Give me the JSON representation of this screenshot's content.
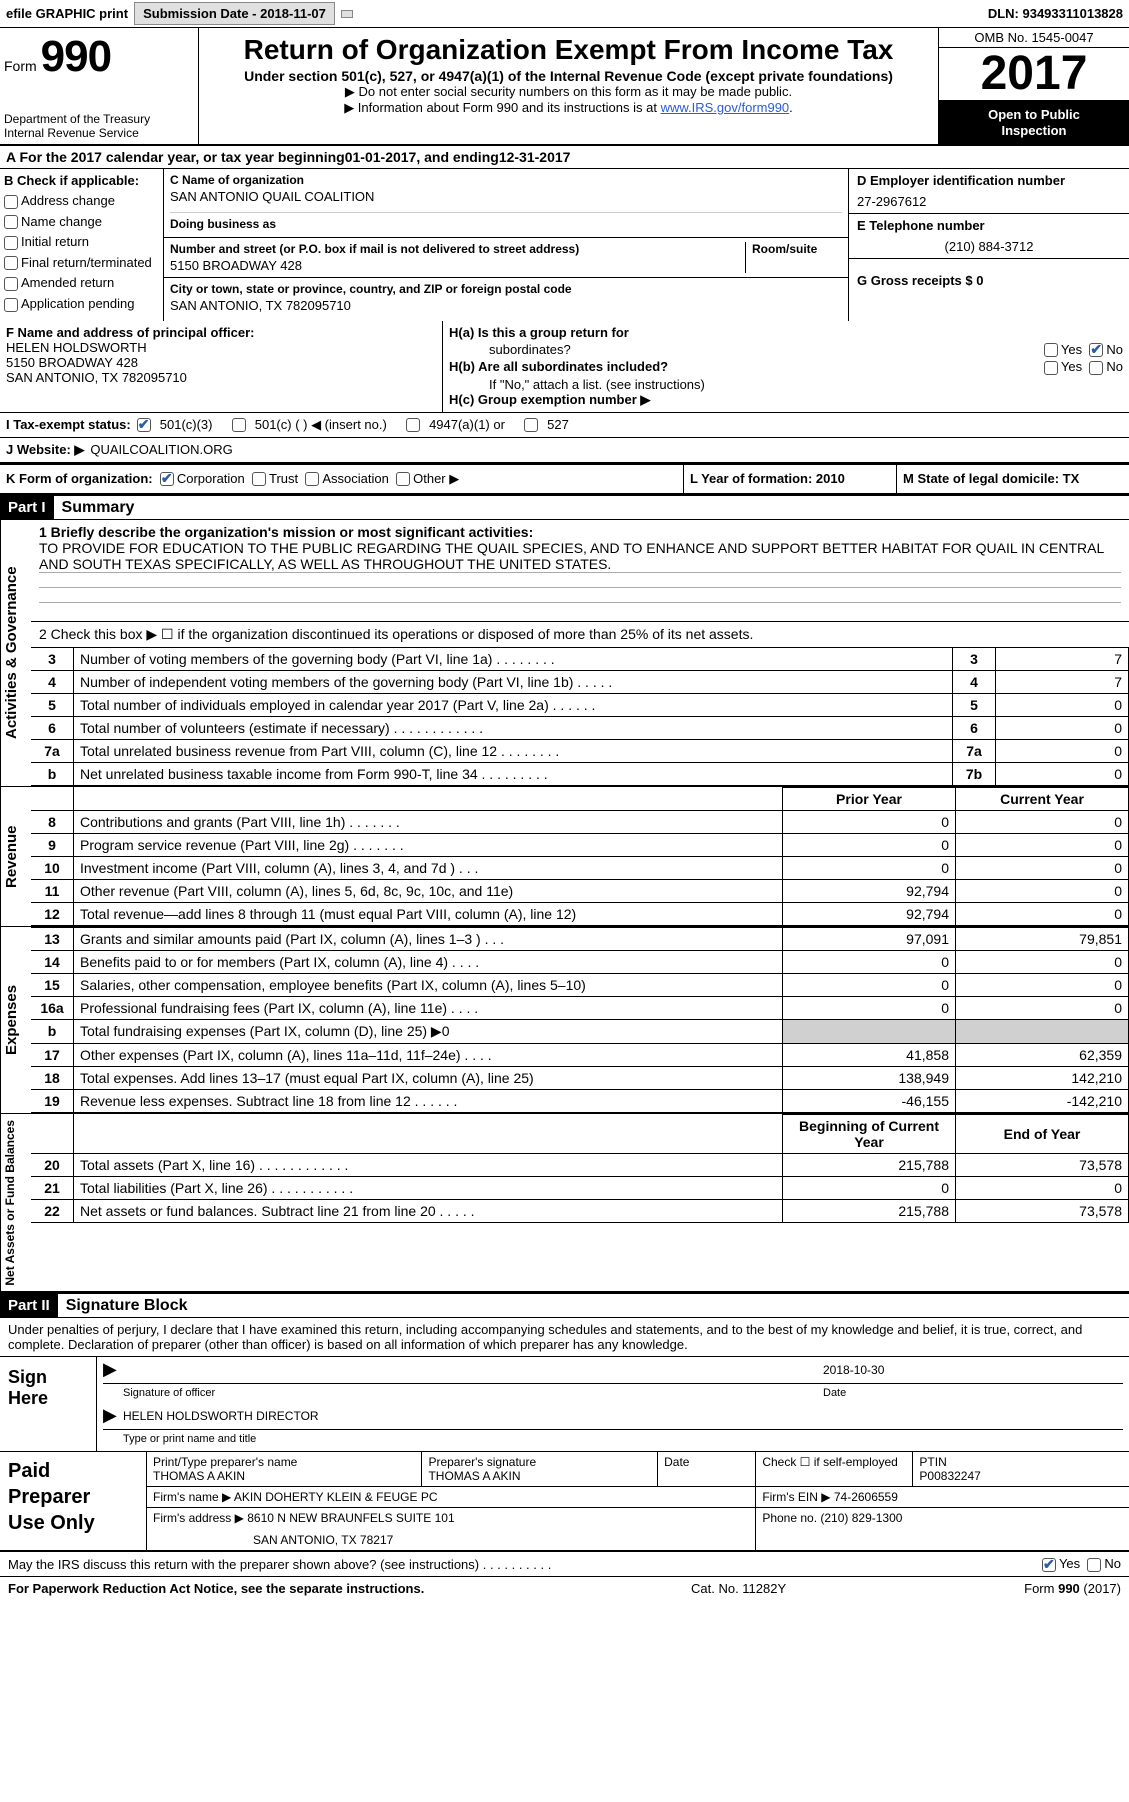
{
  "topbar": {
    "efile": "efile GRAPHIC print",
    "submission_label": "Submission Date - 2018-11-07",
    "dln": "DLN: 93493311013828"
  },
  "header": {
    "form_label": "Form",
    "form_number": "990",
    "dept": "Department of the Treasury",
    "irs": "Internal Revenue Service",
    "title": "Return of Organization Exempt From Income Tax",
    "subtitle": "Under section 501(c), 527, or 4947(a)(1) of the Internal Revenue Code (except private foundations)",
    "note1": "Do not enter social security numbers on this form as it may be made public.",
    "note2": "Information about Form 990 and its instructions is at ",
    "note2_link": "www.IRS.gov/form990",
    "omb": "OMB No. 1545-0047",
    "year": "2017",
    "open": "Open to Public Inspection"
  },
  "rowA": {
    "text_pre": "A   For the 2017 calendar year, or tax year beginning ",
    "begin": "01-01-2017",
    "mid": "   , and ending ",
    "end": "12-31-2017"
  },
  "colB": {
    "label": "B Check if applicable:",
    "items": [
      "Address change",
      "Name change",
      "Initial return",
      "Final return/terminated",
      "Amended return",
      "Application pending"
    ]
  },
  "colC": {
    "name_label": "C Name of organization",
    "name": "SAN ANTONIO QUAIL COALITION",
    "dba_label": "Doing business as",
    "dba": "",
    "addr_label": "Number and street (or P.O. box if mail is not delivered to street address)",
    "room_label": "Room/suite",
    "addr": "5150 BROADWAY 428",
    "city_label": "City or town, state or province, country, and ZIP or foreign postal code",
    "city": "SAN ANTONIO, TX  782095710"
  },
  "colD": {
    "ein_label": "D Employer identification number",
    "ein": "27-2967612",
    "phone_label": "E Telephone number",
    "phone": "(210) 884-3712",
    "gross_label": "G Gross receipts $ 0"
  },
  "colF": {
    "label": "F Name and address of principal officer:",
    "name": "HELEN HOLDSWORTH",
    "addr1": "5150 BROADWAY 428",
    "addr2": "SAN ANTONIO, TX  782095710"
  },
  "colH": {
    "ha": "H(a)  Is this a group return for",
    "ha2": "subordinates?",
    "hb": "H(b)  Are all subordinates included?",
    "hb2": "If \"No,\" attach a list. (see instructions)",
    "hc": "H(c)  Group exemption number ▶",
    "yes": "Yes",
    "no": "No"
  },
  "rowI": {
    "label": "I   Tax-exempt status:",
    "opts": [
      "501(c)(3)",
      "501(c) (   ) ◀ (insert no.)",
      "4947(a)(1) or",
      "527"
    ]
  },
  "rowJ": {
    "label": "J   Website: ▶",
    "val": "QUAILCOALITION.ORG"
  },
  "rowK": {
    "label": "K Form of organization:",
    "opts": [
      "Corporation",
      "Trust",
      "Association",
      "Other ▶"
    ],
    "year_label": "L Year of formation: 2010",
    "state_label": "M State of legal domicile: TX"
  },
  "partI": {
    "header": "Part I",
    "title": "Summary"
  },
  "mission": {
    "label": "1   Briefly describe the organization's mission or most significant activities:",
    "text": "TO PROVIDE FOR EDUCATION TO THE PUBLIC REGARDING THE QUAIL SPECIES, AND TO ENHANCE AND SUPPORT BETTER HABITAT FOR QUAIL IN CENTRAL AND SOUTH TEXAS SPECIFICALLY, AS WELL AS THROUGHOUT THE UNITED STATES."
  },
  "line2": "2   Check this box ▶ ☐  if the organization discontinued its operations or disposed of more than 25% of its net assets.",
  "gov_lines": [
    {
      "n": "3",
      "d": "Number of voting members of the governing body (Part VI, line 1a)   .    .    .    .    .    .    .    .",
      "b": "3",
      "v": "7"
    },
    {
      "n": "4",
      "d": "Number of independent voting members of the governing body (Part VI, line 1b)   .    .    .    .    .",
      "b": "4",
      "v": "7"
    },
    {
      "n": "5",
      "d": "Total number of individuals employed in calendar year 2017 (Part V, line 2a)   .    .    .    .    .    .",
      "b": "5",
      "v": "0"
    },
    {
      "n": "6",
      "d": "Total number of volunteers (estimate if necessary)   .    .    .    .    .    .    .    .    .    .    .    .",
      "b": "6",
      "v": "0"
    },
    {
      "n": "7a",
      "d": "Total unrelated business revenue from Part VIII, column (C), line 12   .    .    .    .    .    .    .    .",
      "b": "7a",
      "v": "0"
    },
    {
      "n": "b",
      "d": "Net unrelated business taxable income from Form 990-T, line 34   .    .    .    .    .    .    .    .    .",
      "b": "7b",
      "v": "0"
    }
  ],
  "rev_header": {
    "py": "Prior Year",
    "cy": "Current Year"
  },
  "rev_lines": [
    {
      "n": "8",
      "d": "Contributions and grants (Part VIII, line 1h)   .    .    .    .    .    .    .",
      "py": "0",
      "cy": "0"
    },
    {
      "n": "9",
      "d": "Program service revenue (Part VIII, line 2g)   .    .    .    .    .    .    .",
      "py": "0",
      "cy": "0"
    },
    {
      "n": "10",
      "d": "Investment income (Part VIII, column (A), lines 3, 4, and 7d )   .    .    .",
      "py": "0",
      "cy": "0"
    },
    {
      "n": "11",
      "d": "Other revenue (Part VIII, column (A), lines 5, 6d, 8c, 9c, 10c, and 11e)",
      "py": "92,794",
      "cy": "0"
    },
    {
      "n": "12",
      "d": "Total revenue—add lines 8 through 11 (must equal Part VIII, column (A), line 12)",
      "py": "92,794",
      "cy": "0"
    }
  ],
  "exp_lines": [
    {
      "n": "13",
      "d": "Grants and similar amounts paid (Part IX, column (A), lines 1–3 )   .    .    .",
      "py": "97,091",
      "cy": "79,851"
    },
    {
      "n": "14",
      "d": "Benefits paid to or for members (Part IX, column (A), line 4)   .    .    .    .",
      "py": "0",
      "cy": "0"
    },
    {
      "n": "15",
      "d": "Salaries, other compensation, employee benefits (Part IX, column (A), lines 5–10)",
      "py": "0",
      "cy": "0"
    },
    {
      "n": "16a",
      "d": "Professional fundraising fees (Part IX, column (A), line 11e)   .    .    .    .",
      "py": "0",
      "cy": "0"
    },
    {
      "n": "b",
      "d": "Total fundraising expenses (Part IX, column (D), line 25) ▶0",
      "py": "",
      "cy": "",
      "shaded": true
    },
    {
      "n": "17",
      "d": "Other expenses (Part IX, column (A), lines 11a–11d, 11f–24e)   .    .    .    .",
      "py": "41,858",
      "cy": "62,359"
    },
    {
      "n": "18",
      "d": "Total expenses. Add lines 13–17 (must equal Part IX, column (A), line 25)",
      "py": "138,949",
      "cy": "142,210"
    },
    {
      "n": "19",
      "d": "Revenue less expenses. Subtract line 18 from line 12   .    .    .    .    .    .",
      "py": "-46,155",
      "cy": "-142,210"
    }
  ],
  "net_header": {
    "py": "Beginning of Current Year",
    "cy": "End of Year"
  },
  "net_lines": [
    {
      "n": "20",
      "d": "Total assets (Part X, line 16)   .    .    .    .    .    .    .    .    .    .    .    .",
      "py": "215,788",
      "cy": "73,578"
    },
    {
      "n": "21",
      "d": "Total liabilities (Part X, line 26)   .    .    .    .    .    .    .    .    .    .    .",
      "py": "0",
      "cy": "0"
    },
    {
      "n": "22",
      "d": "Net assets or fund balances. Subtract line 21 from line 20   .    .    .    .    .",
      "py": "215,788",
      "cy": "73,578"
    }
  ],
  "sides": {
    "gov": "Activities & Governance",
    "rev": "Revenue",
    "exp": "Expenses",
    "net": "Net Assets or Fund Balances"
  },
  "partII": {
    "header": "Part II",
    "title": "Signature Block"
  },
  "sig_intro": "Under penalties of perjury, I declare that I have examined this return, including accompanying schedules and statements, and to the best of my knowledge and belief, it is true, correct, and complete. Declaration of preparer (other than officer) is based on all information of which preparer has any knowledge.",
  "sign": {
    "label": "Sign Here",
    "date": "2018-10-30",
    "officer_sub": "Signature of officer",
    "date_sub": "Date",
    "name": "HELEN HOLDSWORTH  DIRECTOR",
    "name_sub": "Type or print name and title"
  },
  "prep": {
    "label": "Paid Preparer Use Only",
    "name_label": "Print/Type preparer's name",
    "name": "THOMAS A AKIN",
    "sig_label": "Preparer's signature",
    "sig": "THOMAS A AKIN",
    "date_label": "Date",
    "check_label": "Check ☐ if self-employed",
    "ptin_label": "PTIN",
    "ptin": "P00832247",
    "firm_label": "Firm's name     ▶",
    "firm": "AKIN DOHERTY KLEIN & FEUGE PC",
    "ein_label": "Firm's EIN ▶",
    "ein": "74-2606559",
    "addr_label": "Firm's address ▶",
    "addr1": "8610 N NEW BRAUNFELS SUITE 101",
    "addr2": "SAN ANTONIO, TX  78217",
    "phone_label": "Phone no.",
    "phone": "(210) 829-1300"
  },
  "discuss": "May the IRS discuss this return with the preparer shown above? (see instructions)   .    .    .    .    .    .    .    .    .    .",
  "footer": {
    "left": "For Paperwork Reduction Act Notice, see the separate instructions.",
    "mid": "Cat. No. 11282Y",
    "right": "Form 990 (2017)"
  }
}
